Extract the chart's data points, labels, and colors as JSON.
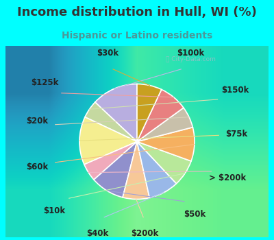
{
  "title": "Income distribution in Hull, WI (%)",
  "subtitle": "Hispanic or Latino residents",
  "background_outer": "#00FFFF",
  "background_chart_colors": [
    "#d0ede4",
    "#e8f4f0",
    "#e0f0eb",
    "#c8e8de"
  ],
  "title_color": "#333333",
  "subtitle_color": "#4a9999",
  "labels": [
    "$100k",
    "$150k",
    "$75k",
    "> $200k",
    "$50k",
    "$200k",
    "$40k",
    "$10k",
    "$60k",
    "$20k",
    "$125k",
    "$30k"
  ],
  "sizes": [
    13.0,
    5.0,
    13.5,
    5.0,
    9.5,
    7.5,
    8.5,
    7.5,
    9.5,
    6.0,
    8.0,
    7.0
  ],
  "colors": [
    "#b8aee0",
    "#c5d9a0",
    "#f5ee90",
    "#f0aabb",
    "#9090cc",
    "#f7c898",
    "#99b8e8",
    "#b8e89a",
    "#f5b060",
    "#c8c0aa",
    "#e88080",
    "#c8a020"
  ],
  "title_fontsize": 13,
  "subtitle_fontsize": 10,
  "label_fontsize": 8.5,
  "startangle": 90
}
